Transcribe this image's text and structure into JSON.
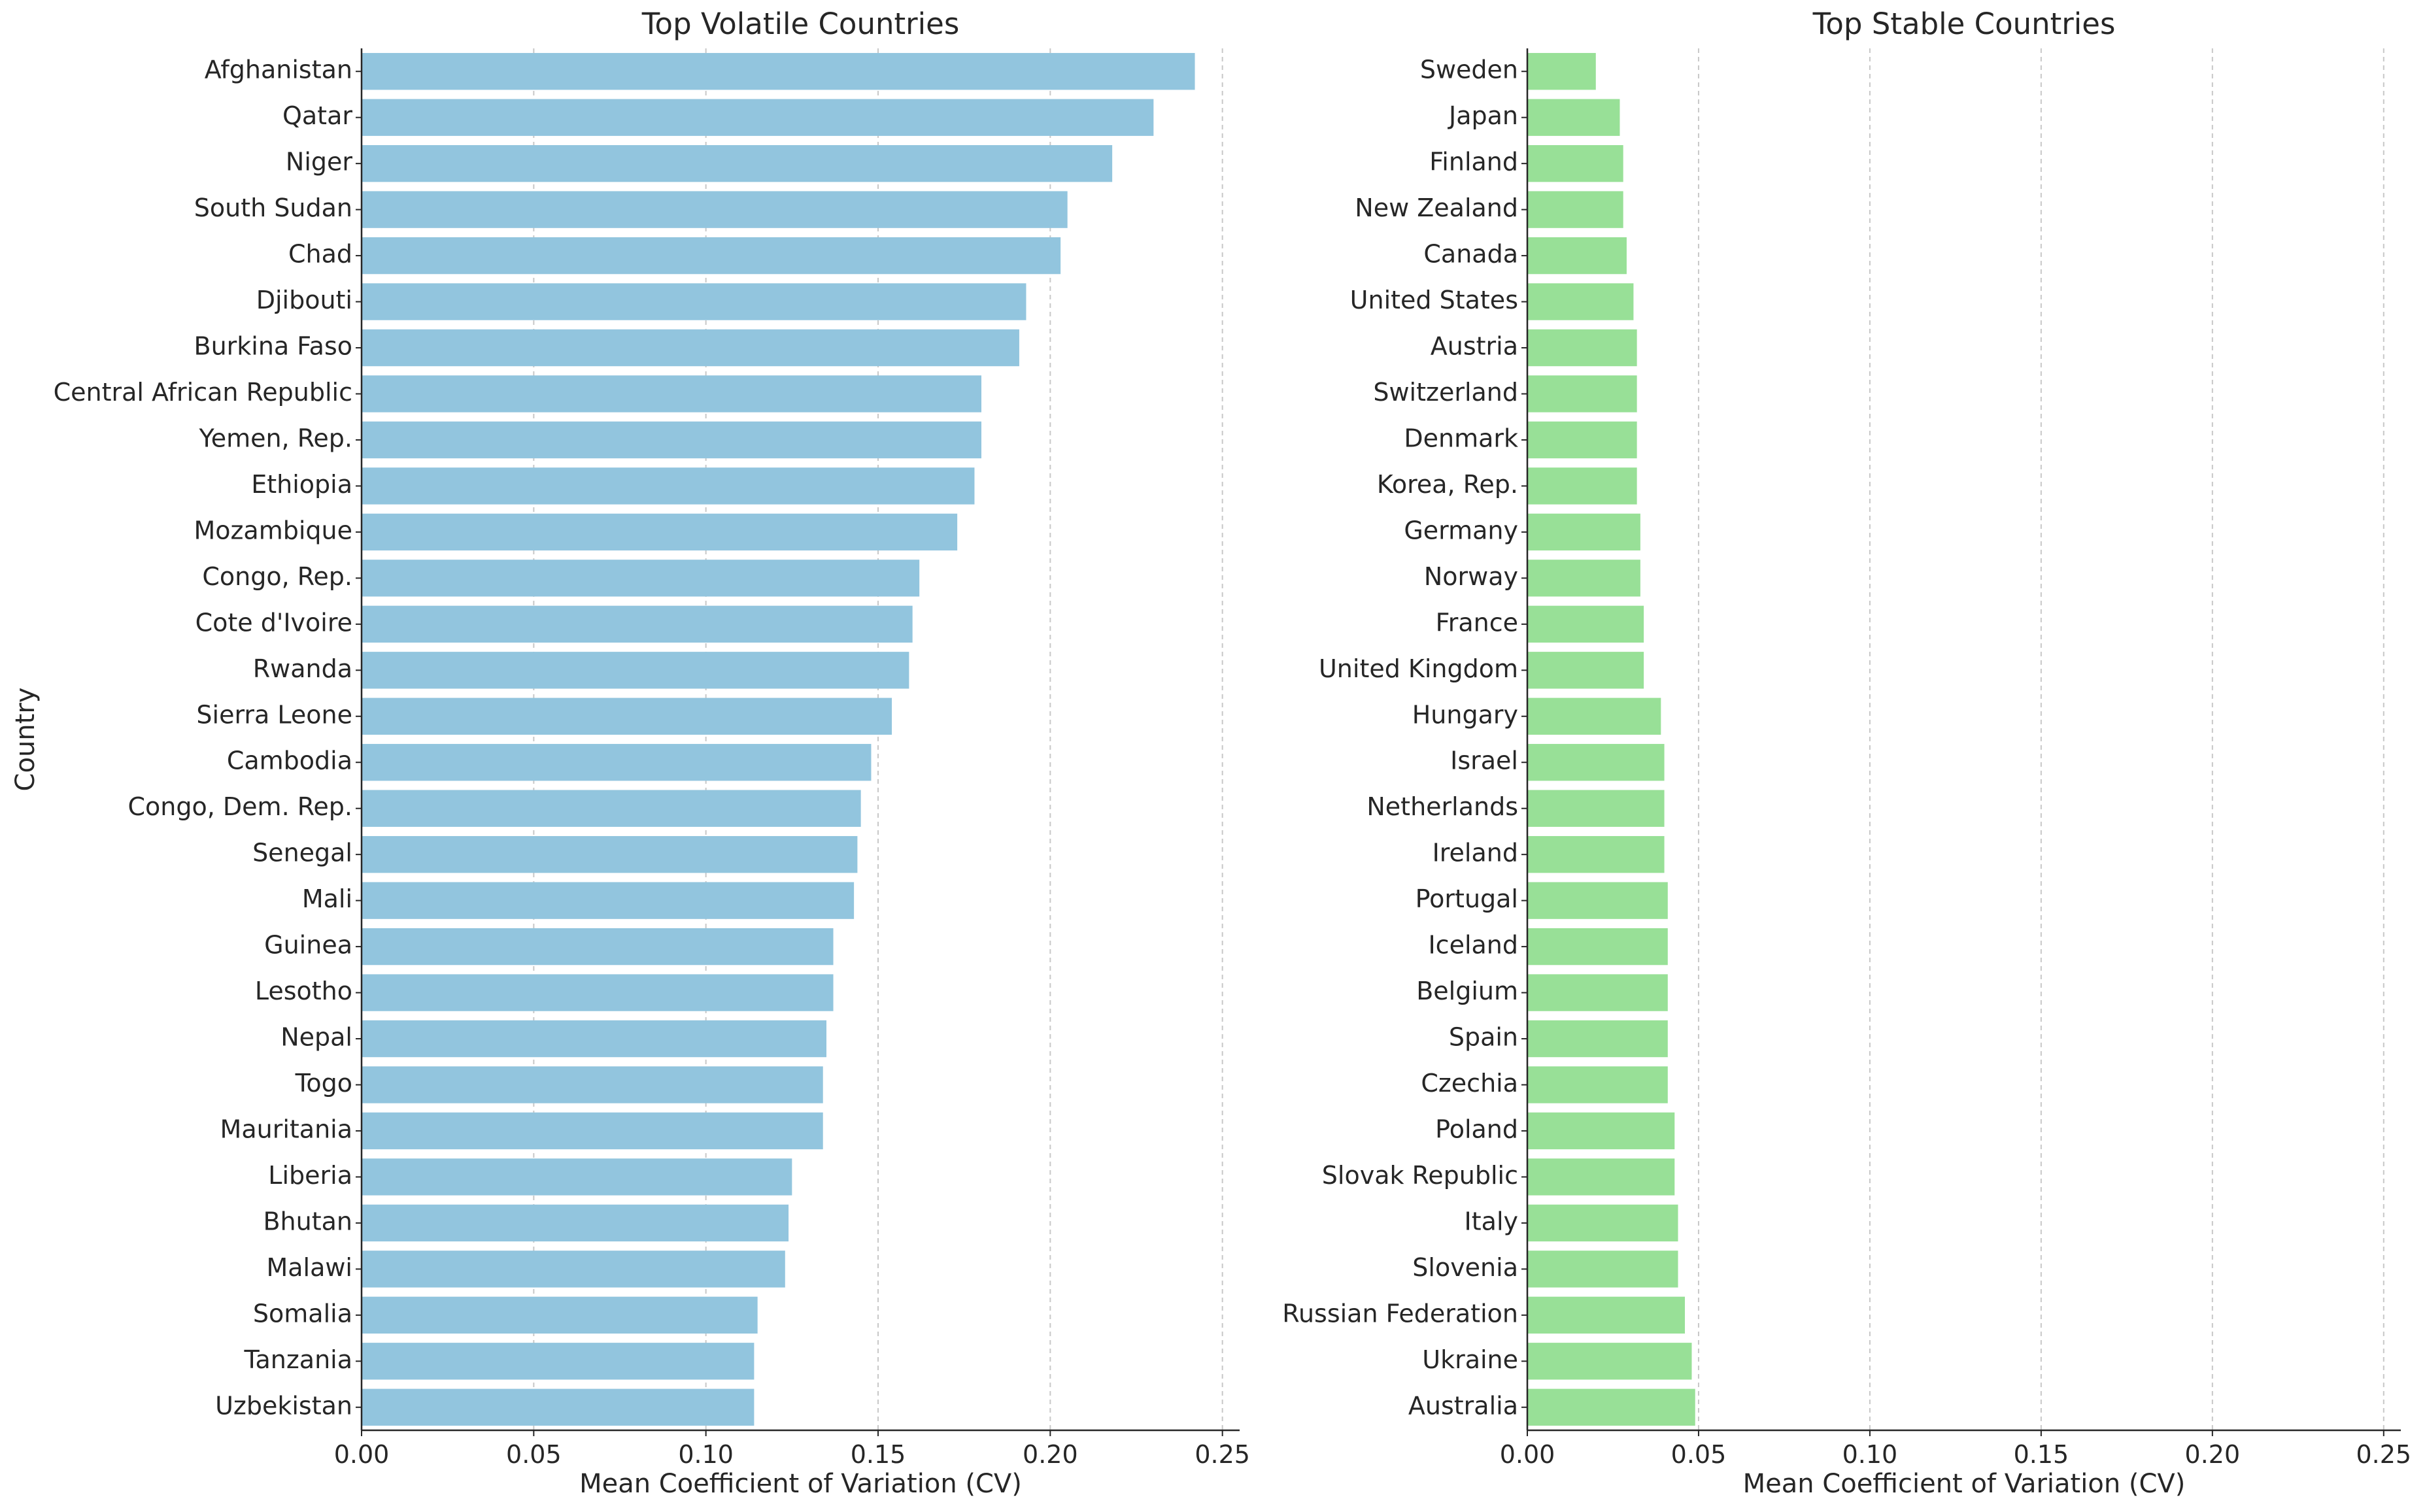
{
  "chart_data": [
    {
      "type": "bar",
      "orientation": "horizontal",
      "title": "Top Volatile Countries",
      "xlabel": "Mean Coefficient of Variation (CV)",
      "ylabel": "Country",
      "xlim": [
        0,
        0.255
      ],
      "xticks": [
        0.0,
        0.05,
        0.1,
        0.15,
        0.2,
        0.25
      ],
      "xtick_labels": [
        "0.00",
        "0.05",
        "0.10",
        "0.15",
        "0.20",
        "0.25"
      ],
      "grid": "x-dashed",
      "color": "#92c5de",
      "categories": [
        "Afghanistan",
        "Qatar",
        "Niger",
        "South Sudan",
        "Chad",
        "Djibouti",
        "Burkina Faso",
        "Central African Republic",
        "Yemen, Rep.",
        "Ethiopia",
        "Mozambique",
        "Congo, Rep.",
        "Cote d'Ivoire",
        "Rwanda",
        "Sierra Leone",
        "Cambodia",
        "Congo, Dem. Rep.",
        "Senegal",
        "Mali",
        "Guinea",
        "Lesotho",
        "Nepal",
        "Togo",
        "Mauritania",
        "Liberia",
        "Bhutan",
        "Malawi",
        "Somalia",
        "Tanzania",
        "Uzbekistan"
      ],
      "values": [
        0.242,
        0.23,
        0.218,
        0.205,
        0.203,
        0.193,
        0.191,
        0.18,
        0.18,
        0.178,
        0.173,
        0.162,
        0.16,
        0.159,
        0.154,
        0.148,
        0.145,
        0.144,
        0.143,
        0.137,
        0.137,
        0.135,
        0.134,
        0.134,
        0.125,
        0.124,
        0.123,
        0.115,
        0.114,
        0.114
      ]
    },
    {
      "type": "bar",
      "orientation": "horizontal",
      "title": "Top Stable Countries",
      "xlabel": "Mean Coefficient of Variation (CV)",
      "ylabel": "",
      "xlim": [
        0,
        0.255
      ],
      "xticks": [
        0.0,
        0.05,
        0.1,
        0.15,
        0.2,
        0.25
      ],
      "xtick_labels": [
        "0.00",
        "0.05",
        "0.10",
        "0.15",
        "0.20",
        "0.25"
      ],
      "grid": "x-dashed",
      "color": "#98e097",
      "categories": [
        "Sweden",
        "Japan",
        "Finland",
        "New Zealand",
        "Canada",
        "United States",
        "Austria",
        "Switzerland",
        "Denmark",
        "Korea, Rep.",
        "Germany",
        "Norway",
        "France",
        "United Kingdom",
        "Hungary",
        "Israel",
        "Netherlands",
        "Ireland",
        "Portugal",
        "Iceland",
        "Belgium",
        "Spain",
        "Czechia",
        "Poland",
        "Slovak Republic",
        "Italy",
        "Slovenia",
        "Russian Federation",
        "Ukraine",
        "Australia"
      ],
      "values": [
        0.02,
        0.027,
        0.028,
        0.028,
        0.029,
        0.031,
        0.032,
        0.032,
        0.032,
        0.032,
        0.033,
        0.033,
        0.034,
        0.034,
        0.039,
        0.04,
        0.04,
        0.04,
        0.041,
        0.041,
        0.041,
        0.041,
        0.041,
        0.043,
        0.043,
        0.044,
        0.044,
        0.046,
        0.048,
        0.049
      ]
    }
  ]
}
